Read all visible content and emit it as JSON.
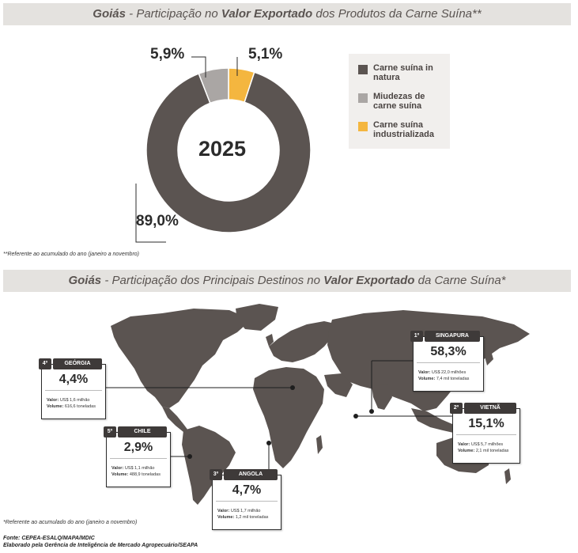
{
  "banner1": {
    "part1": "Goiás",
    "part2": " - Participação no ",
    "part3": "Valor Exportado",
    "part4": " dos Produtos da Carne Suína**"
  },
  "chart_data": [
    {
      "type": "pie",
      "center_label": "2025",
      "categories": [
        "Carne suína in natura",
        "Miudezas de carne suína",
        "Carne suína industrializada"
      ],
      "values": [
        89.0,
        5.9,
        5.1
      ],
      "value_labels": [
        "89,0%",
        "5,9%",
        "5,1%"
      ],
      "colors": [
        "#5b5451",
        "#aaa6a4",
        "#f4b63f"
      ],
      "legend_position": "right"
    },
    {
      "type": "table",
      "title_parts": [
        "Goiás",
        " - Participação dos Principais Destinos no ",
        "Valor Exportado",
        " da Carne Suína*"
      ],
      "destinations": [
        {
          "rank": "1º",
          "country": "SINGAPURA",
          "share": 58.3,
          "share_label": "58,3%",
          "valor_label": "Valor:",
          "valor": "US$ 22,0 milhões",
          "volume_label": "Volume:",
          "volume": "7,4 mil toneladas"
        },
        {
          "rank": "2º",
          "country": "VIETNÃ",
          "share": 15.1,
          "share_label": "15,1%",
          "valor_label": "Valor:",
          "valor": "US$ 5,7 milhões",
          "volume_label": "Volume:",
          "volume": "2,1 mil toneladas"
        },
        {
          "rank": "3º",
          "country": "ANGOLA",
          "share": 4.7,
          "share_label": "4,7%",
          "valor_label": "Valor:",
          "valor": "US$ 1,7 milhão",
          "volume_label": "Volume:",
          "volume": "1,2 mil toneladas"
        },
        {
          "rank": "4º",
          "country": "GEÓRGIA",
          "share": 4.4,
          "share_label": "4,4%",
          "valor_label": "Valor:",
          "valor": "US$ 1,6 milhão",
          "volume_label": "Volume:",
          "volume": "616,6 toneladas"
        },
        {
          "rank": "5º",
          "country": "CHILE",
          "share": 2.9,
          "share_label": "2,9%",
          "valor_label": "Valor:",
          "valor": "US$ 1,1 milhão",
          "volume_label": "Volume:",
          "volume": "488,9 toneladas"
        }
      ]
    }
  ],
  "notes": {
    "note1": "**Referente ao acumulado do ano (janeiro a novembro)",
    "note2": "*Referente ao acumulado do ano (janeiro a novembro)"
  },
  "footer": {
    "source": "Fonte: CEPEA-ESALQ/MAPA/MDIC",
    "author": "Elaborado pela Gerência de Inteligência de Mercado Agropecuário/SEAPA"
  },
  "colors": {
    "map_land": "#5b5451",
    "banner_bg": "#e4e2df",
    "card_header": "#3e3a39"
  }
}
